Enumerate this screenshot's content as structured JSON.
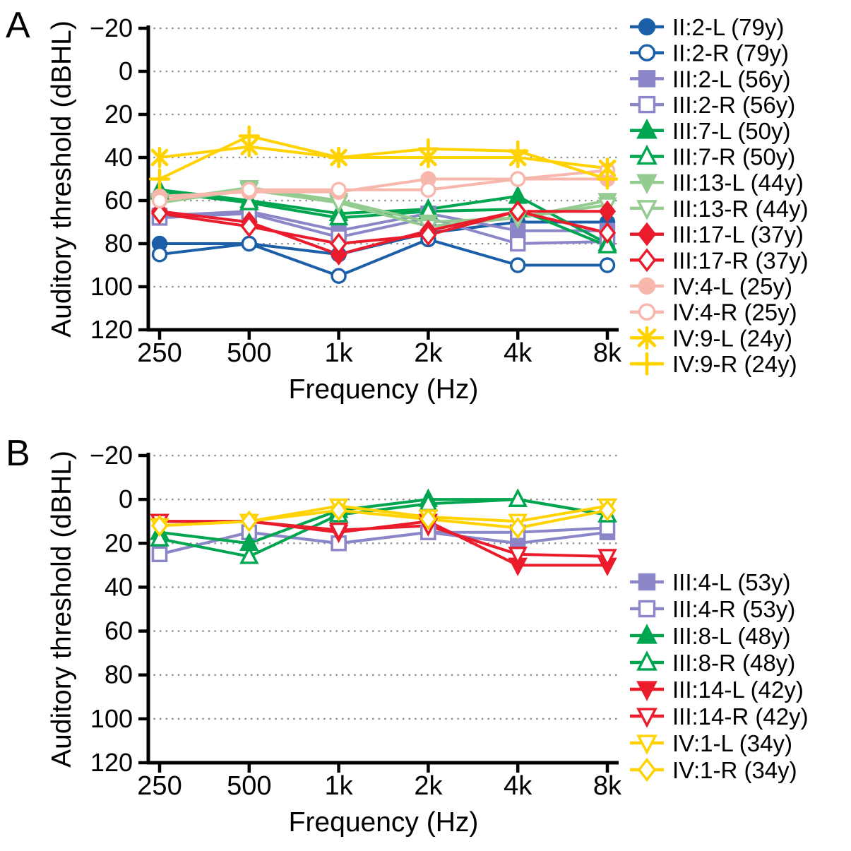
{
  "figure": {
    "background": "#ffffff",
    "panels": [
      {
        "label": "A"
      },
      {
        "label": "B"
      }
    ]
  },
  "chart_data": [
    {
      "type": "line",
      "panel": "A",
      "title": "",
      "xlabel": "Frequency (Hz)",
      "ylabel": "Auditory threshold (dBHL)",
      "categories": [
        "250",
        "500",
        "1k",
        "2k",
        "4k",
        "8k"
      ],
      "ylim": [
        -20,
        120
      ],
      "yticks": [
        -20,
        0,
        20,
        40,
        60,
        80,
        100,
        120
      ],
      "y_inverted": true,
      "grid": "horizontal-dotted",
      "legend_position": "right",
      "series": [
        {
          "name": "II:2-L (79y)",
          "color": "#1b5fa8",
          "marker": "circle",
          "filled": true,
          "values": [
            80,
            80,
            85,
            75,
            70,
            70
          ]
        },
        {
          "name": "II:2-R (79y)",
          "color": "#1b5fa8",
          "marker": "circle",
          "filled": false,
          "values": [
            85,
            80,
            95,
            78,
            90,
            90
          ]
        },
        {
          "name": "III:2-L (56y)",
          "color": "#8a86c8",
          "marker": "square",
          "filled": true,
          "values": [
            67,
            65,
            74,
            66,
            74,
            74
          ]
        },
        {
          "name": "III:2-R (56y)",
          "color": "#8a86c8",
          "marker": "square",
          "filled": false,
          "values": [
            68,
            66,
            77,
            68,
            80,
            79
          ]
        },
        {
          "name": "III:7-L (50y)",
          "color": "#00a550",
          "marker": "triangle-up",
          "filled": true,
          "values": [
            55,
            60,
            66,
            64,
            58,
            80
          ]
        },
        {
          "name": "III:7-R (50y)",
          "color": "#00a550",
          "marker": "triangle-up",
          "filled": false,
          "values": [
            56,
            61,
            68,
            65,
            64,
            81
          ]
        },
        {
          "name": "III:13-L (44y)",
          "color": "#93cb90",
          "marker": "triangle-down",
          "filled": true,
          "values": [
            60,
            54,
            60,
            70,
            68,
            60
          ]
        },
        {
          "name": "III:13-R (44y)",
          "color": "#93cb90",
          "marker": "triangle-down",
          "filled": false,
          "values": [
            61,
            55,
            61,
            72,
            68,
            62
          ]
        },
        {
          "name": "III:17-L (37y)",
          "color": "#ea1c2c",
          "marker": "diamond",
          "filled": true,
          "values": [
            65,
            70,
            85,
            74,
            65,
            65
          ]
        },
        {
          "name": "III:17-R (37y)",
          "color": "#ea1c2c",
          "marker": "diamond",
          "filled": false,
          "values": [
            66,
            72,
            80,
            76,
            65,
            75
          ]
        },
        {
          "name": "IV:4-L (25y)",
          "color": "#f8b7ad",
          "marker": "circle",
          "filled": true,
          "values": [
            58,
            56,
            56,
            50,
            50,
            50
          ]
        },
        {
          "name": "IV:4-R (25y)",
          "color": "#f8b7ad",
          "marker": "circle",
          "filled": false,
          "values": [
            60,
            55,
            55,
            55,
            50,
            46
          ]
        },
        {
          "name": "IV:9-L (24y)",
          "color": "#ffd200",
          "marker": "x",
          "filled": true,
          "values": [
            40,
            35,
            40,
            40,
            40,
            45
          ]
        },
        {
          "name": "IV:9-R (24y)",
          "color": "#ffd200",
          "marker": "plus",
          "filled": true,
          "values": [
            50,
            30,
            40,
            36,
            37,
            50
          ]
        }
      ]
    },
    {
      "type": "line",
      "panel": "B",
      "title": "",
      "xlabel": "Frequency (Hz)",
      "ylabel": "Auditory threshold (dBHL)",
      "categories": [
        "250",
        "500",
        "1k",
        "2k",
        "4k",
        "8k"
      ],
      "ylim": [
        -20,
        120
      ],
      "yticks": [
        -20,
        0,
        20,
        40,
        60,
        80,
        100,
        120
      ],
      "y_inverted": true,
      "grid": "horizontal-dotted",
      "legend_position": "right",
      "series": [
        {
          "name": "III:4-L (53y)",
          "color": "#8a86c8",
          "marker": "square",
          "filled": true,
          "values": [
            25,
            15,
            20,
            15,
            20,
            15
          ]
        },
        {
          "name": "III:4-R (53y)",
          "color": "#8a86c8",
          "marker": "square",
          "filled": false,
          "values": [
            25,
            15,
            20,
            15,
            15,
            13
          ]
        },
        {
          "name": "III:8-L (48y)",
          "color": "#00a550",
          "marker": "triangle-up",
          "filled": true,
          "values": [
            15,
            20,
            5,
            0,
            0,
            7
          ]
        },
        {
          "name": "III:8-R (48y)",
          "color": "#00a550",
          "marker": "triangle-up",
          "filled": false,
          "values": [
            18,
            26,
            7,
            2,
            0,
            7
          ]
        },
        {
          "name": "III:14-L (42y)",
          "color": "#ea1c2c",
          "marker": "triangle-down",
          "filled": true,
          "values": [
            10,
            10,
            15,
            10,
            30,
            30
          ]
        },
        {
          "name": "III:14-R (42y)",
          "color": "#ea1c2c",
          "marker": "triangle-down",
          "filled": false,
          "values": [
            10,
            10,
            14,
            12,
            25,
            26
          ]
        },
        {
          "name": "IV:1-L (34y)",
          "color": "#ffd200",
          "marker": "triangle-down",
          "filled": false,
          "values": [
            12,
            10,
            3,
            8,
            10,
            3
          ]
        },
        {
          "name": "IV:1-R (34y)",
          "color": "#ffd200",
          "marker": "diamond",
          "filled": false,
          "values": [
            12,
            10,
            5,
            9,
            13,
            5
          ]
        }
      ]
    }
  ]
}
